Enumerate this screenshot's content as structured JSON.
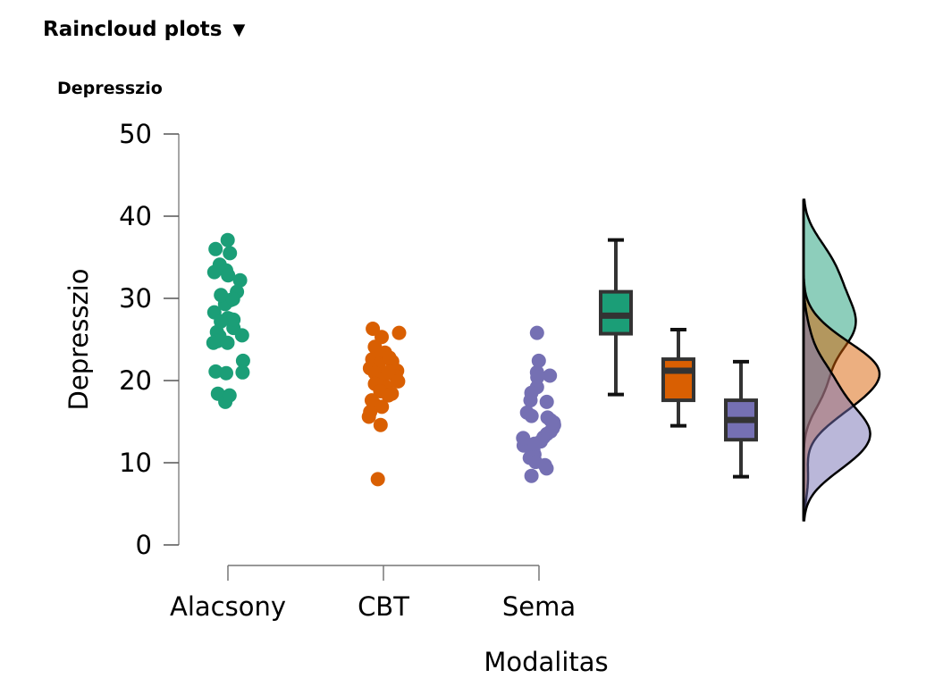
{
  "header": {
    "section_title": "Raincloud plots",
    "toggle_icon": "triangle-down-icon",
    "plot_title": "Depresszio"
  },
  "chart_data": {
    "type": "raincloud",
    "title": "Depresszio",
    "xlabel": "Modalitas",
    "ylabel": "Depresszio",
    "ylim": [
      0,
      50
    ],
    "yticks": [
      0,
      10,
      20,
      30,
      40,
      50
    ],
    "ytick_labels": [
      "0",
      "10",
      "20",
      "30",
      "40",
      "50"
    ],
    "categories": [
      "Alacsony",
      "CBT",
      "Sema"
    ],
    "grid": false,
    "series": [
      {
        "name": "Alacsony",
        "color": "#1b9e77",
        "points": [
          37.1,
          35.5,
          36.0,
          34.1,
          33.4,
          32.8,
          33.2,
          32.2,
          29.8,
          29.3,
          30.4,
          30.8,
          29.9,
          28.3,
          27.6,
          25.4,
          26.4,
          25.9,
          27.5,
          24.6,
          24.8,
          24.6,
          25.5,
          22.4,
          21.1,
          20.9,
          21.0,
          18.4,
          17.4,
          18.2,
          27.4,
          27.2
        ],
        "box": {
          "min": 18.3,
          "q1": 25.7,
          "median": 27.9,
          "q3": 30.8,
          "max": 37.1
        }
      },
      {
        "name": "CBT",
        "color": "#d95f02",
        "points": [
          26.3,
          25.8,
          25.3,
          24.1,
          23.4,
          23.0,
          22.6,
          22.3,
          22.0,
          21.8,
          21.5,
          21.2,
          20.9,
          20.5,
          20.2,
          19.6,
          19.2,
          18.7,
          18.4,
          18.2,
          17.6,
          17.1,
          16.8,
          16.2,
          15.6,
          14.6,
          22.8,
          21.0,
          19.9,
          8.0
        ],
        "box": {
          "min": 14.5,
          "q1": 17.6,
          "median": 21.2,
          "q3": 22.6,
          "max": 26.2
        }
      },
      {
        "name": "Sema",
        "color": "#7570b3",
        "points": [
          25.8,
          22.4,
          21.0,
          20.6,
          20.4,
          19.2,
          18.5,
          17.6,
          17.4,
          16.1,
          15.7,
          15.5,
          15.2,
          14.6,
          14.2,
          13.8,
          13.5,
          13.1,
          12.6,
          12.1,
          11.6,
          11.0,
          10.6,
          10.1,
          9.7,
          9.3,
          8.4,
          14.9,
          13.0,
          12.3
        ],
        "box": {
          "min": 8.3,
          "q1": 12.8,
          "median": 15.2,
          "q3": 17.6,
          "max": 22.3
        }
      }
    ]
  }
}
